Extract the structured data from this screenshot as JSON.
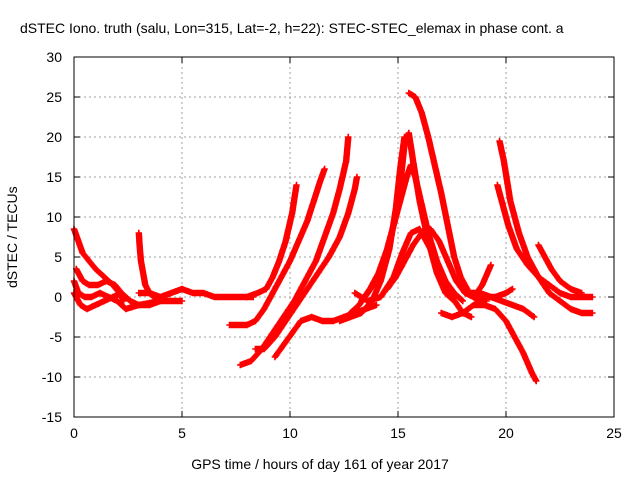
{
  "chart_data": {
    "type": "scatter",
    "title": "dSTEC Iono. truth (salu, Lon=315, Lat=-2, h=22): STEC-STEC_elemax in phase cont. a",
    "xlabel": "GPS time / hours of day 161 of year 2017",
    "ylabel": "dSTEC  / TECUs",
    "xlim": [
      0,
      25
    ],
    "ylim": [
      -15,
      30
    ],
    "xticks": [
      "0",
      "5",
      "10",
      "15",
      "20",
      "25"
    ],
    "yticks": [
      "-15",
      "-10",
      "-5",
      "0",
      "5",
      "10",
      "15",
      "20",
      "25",
      "30"
    ],
    "grid": true,
    "marker": "+",
    "color": "#ff0000",
    "series": [
      {
        "x": [
          0.0,
          0.2,
          0.4,
          0.7,
          1.0,
          1.4,
          1.8,
          2.1,
          2.3
        ],
        "y": [
          8.5,
          7.0,
          5.5,
          4.5,
          3.5,
          2.5,
          1.5,
          0.5,
          -0.5
        ]
      },
      {
        "x": [
          0.0,
          0.2,
          0.5,
          0.8,
          1.2,
          1.6,
          2.0,
          2.4,
          3.0,
          4.0,
          5.0
        ],
        "y": [
          2.0,
          0.5,
          0.0,
          0.0,
          0.5,
          0.0,
          -0.5,
          -1.5,
          -1.0,
          -0.5,
          -0.5
        ]
      },
      {
        "x": [
          0.0,
          0.3,
          0.6,
          1.0,
          1.4,
          1.8,
          2.2,
          2.6,
          3.0,
          3.5,
          4.0
        ],
        "y": [
          0.5,
          -1.0,
          -1.5,
          -1.0,
          -0.5,
          0.0,
          0.5,
          -0.5,
          -1.0,
          -1.0,
          -0.5
        ]
      },
      {
        "x": [
          0.1,
          0.2,
          0.4,
          0.7,
          1.1,
          1.5,
          1.9,
          2.2
        ],
        "y": [
          3.5,
          3.0,
          2.0,
          1.5,
          1.5,
          2.0,
          1.5,
          0.5
        ]
      },
      {
        "x": [
          3.0,
          3.05,
          3.1,
          3.2,
          3.3,
          3.5,
          3.7,
          4.0
        ],
        "y": [
          8.0,
          6.0,
          4.5,
          3.0,
          1.5,
          0.5,
          0.0,
          0.0
        ]
      },
      {
        "x": [
          3.0,
          3.5,
          4.0,
          4.5,
          5.0,
          5.5,
          6.0,
          6.5,
          7.0,
          7.5,
          8.0,
          8.3
        ],
        "y": [
          0.5,
          0.5,
          0.0,
          0.5,
          1.0,
          0.5,
          0.5,
          0.0,
          0.0,
          0.0,
          0.0,
          0.0
        ]
      },
      {
        "x": [
          8.0,
          8.5,
          8.9,
          9.2,
          9.5,
          9.8,
          10.1,
          10.3
        ],
        "y": [
          0.0,
          0.5,
          1.0,
          2.5,
          4.5,
          7.0,
          10.5,
          14.0
        ]
      },
      {
        "x": [
          7.2,
          7.6,
          8.0,
          8.4,
          8.8,
          9.2,
          9.6,
          10.0,
          10.4,
          10.8,
          11.1,
          11.4,
          11.6
        ],
        "y": [
          -3.5,
          -3.5,
          -3.5,
          -3.0,
          -1.5,
          0.5,
          2.5,
          4.5,
          7.0,
          9.5,
          12.0,
          14.5,
          16.0
        ]
      },
      {
        "x": [
          7.7,
          8.2,
          8.7,
          9.2,
          9.7,
          10.2,
          10.7,
          11.2,
          11.6,
          12.0,
          12.3,
          12.6,
          12.7
        ],
        "y": [
          -8.5,
          -8.0,
          -6.5,
          -4.5,
          -2.5,
          -0.5,
          2.0,
          4.5,
          7.5,
          10.5,
          13.5,
          17.0,
          20.0
        ]
      },
      {
        "x": [
          8.4,
          8.8,
          9.3,
          9.8,
          10.3,
          10.8,
          11.3,
          11.8,
          12.3,
          12.7,
          13.0,
          13.1
        ],
        "y": [
          -6.5,
          -6.5,
          -5.0,
          -3.0,
          -1.0,
          1.0,
          3.0,
          5.0,
          7.5,
          10.5,
          13.5,
          15.0
        ]
      },
      {
        "x": [
          9.3,
          9.7,
          10.1,
          10.5,
          11.0,
          11.5,
          12.0,
          12.5,
          13.0,
          13.5,
          14.0
        ],
        "y": [
          -7.5,
          -6.0,
          -4.5,
          -3.0,
          -2.5,
          -3.0,
          -3.0,
          -2.5,
          -2.0,
          -1.5,
          -1.0
        ]
      },
      {
        "x": [
          12.3,
          12.8,
          13.3,
          13.8,
          14.2,
          14.6,
          14.9,
          15.1,
          15.3
        ],
        "y": [
          -3.0,
          -2.5,
          -2.0,
          -0.5,
          2.0,
          6.0,
          11.0,
          16.0,
          20.0
        ]
      },
      {
        "x": [
          12.8,
          13.2,
          13.6,
          14.0,
          14.4,
          14.8,
          15.1,
          15.3,
          15.5,
          15.7,
          16.0,
          16.4,
          16.8,
          17.2,
          17.6
        ],
        "y": [
          -2.0,
          -1.0,
          0.5,
          2.0,
          5.0,
          9.0,
          14.0,
          19.0,
          20.5,
          17.0,
          12.0,
          7.0,
          3.0,
          0.5,
          -0.5
        ]
      },
      {
        "x": [
          13.3,
          13.7,
          14.1,
          14.5,
          14.8,
          15.1,
          15.4,
          15.6,
          15.8,
          16.1,
          16.4,
          16.8,
          17.2,
          17.6,
          18.0
        ],
        "y": [
          -0.5,
          1.0,
          3.0,
          6.0,
          9.0,
          12.0,
          15.0,
          16.5,
          15.0,
          11.5,
          8.0,
          4.5,
          2.0,
          0.5,
          -0.5
        ]
      },
      {
        "x": [
          15.5,
          15.8,
          16.1,
          16.4,
          16.7,
          17.0,
          17.3,
          17.6,
          17.9,
          18.3,
          18.7,
          19.1
        ],
        "y": [
          25.5,
          25.0,
          23.0,
          20.0,
          16.5,
          13.0,
          9.0,
          5.0,
          2.5,
          0.5,
          -0.5,
          -0.5
        ]
      },
      {
        "x": [
          14.5,
          14.9,
          15.3,
          15.7,
          16.1,
          16.5,
          16.9,
          17.3,
          17.7,
          18.1,
          18.5,
          18.9,
          19.3
        ],
        "y": [
          1.0,
          2.5,
          4.5,
          6.5,
          8.0,
          8.5,
          7.0,
          4.5,
          2.0,
          0.5,
          0.0,
          1.5,
          4.0
        ]
      },
      {
        "x": [
          13.0,
          13.6,
          14.2,
          14.8,
          15.2,
          15.6,
          16.0,
          16.5,
          17.0,
          17.5,
          18.0,
          18.4
        ],
        "y": [
          0.5,
          -0.5,
          0.0,
          2.5,
          5.5,
          8.0,
          8.5,
          6.0,
          2.5,
          0.0,
          -2.0,
          -2.5
        ]
      },
      {
        "x": [
          17.0,
          17.5,
          18.0,
          18.5,
          19.0,
          19.5,
          20.0,
          20.4,
          20.8,
          21.2,
          21.4
        ],
        "y": [
          -2.0,
          -2.5,
          -2.0,
          -1.0,
          -1.0,
          -1.5,
          -3.0,
          -5.0,
          -7.0,
          -9.5,
          -10.5
        ]
      },
      {
        "x": [
          18.3,
          18.8,
          19.3,
          19.8,
          20.3,
          20.8,
          21.3
        ],
        "y": [
          0.5,
          0.5,
          0.0,
          -0.5,
          -1.0,
          -1.5,
          -2.5
        ]
      },
      {
        "x": [
          19.7,
          19.9,
          20.2,
          20.6,
          21.0,
          21.5,
          22.0,
          22.5,
          23.0,
          23.5,
          24.0
        ],
        "y": [
          19.5,
          17.0,
          12.0,
          8.0,
          5.0,
          2.5,
          0.5,
          -0.5,
          -1.5,
          -2.0,
          -2.0
        ]
      },
      {
        "x": [
          19.6,
          19.8,
          20.1,
          20.5,
          21.0,
          21.5,
          22.0,
          22.5,
          23.0,
          23.5,
          24.0
        ],
        "y": [
          14.0,
          12.0,
          9.0,
          6.0,
          4.0,
          2.5,
          1.5,
          0.5,
          0.0,
          0.0,
          0.0
        ]
      },
      {
        "x": [
          21.5,
          21.8,
          22.1,
          22.5,
          23.0,
          23.5
        ],
        "y": [
          6.5,
          5.0,
          3.5,
          2.0,
          1.0,
          0.5
        ]
      },
      {
        "x": [
          18.5,
          19.0,
          19.5,
          20.0,
          20.3
        ],
        "y": [
          0.5,
          0.0,
          0.0,
          0.5,
          1.0
        ]
      }
    ]
  }
}
